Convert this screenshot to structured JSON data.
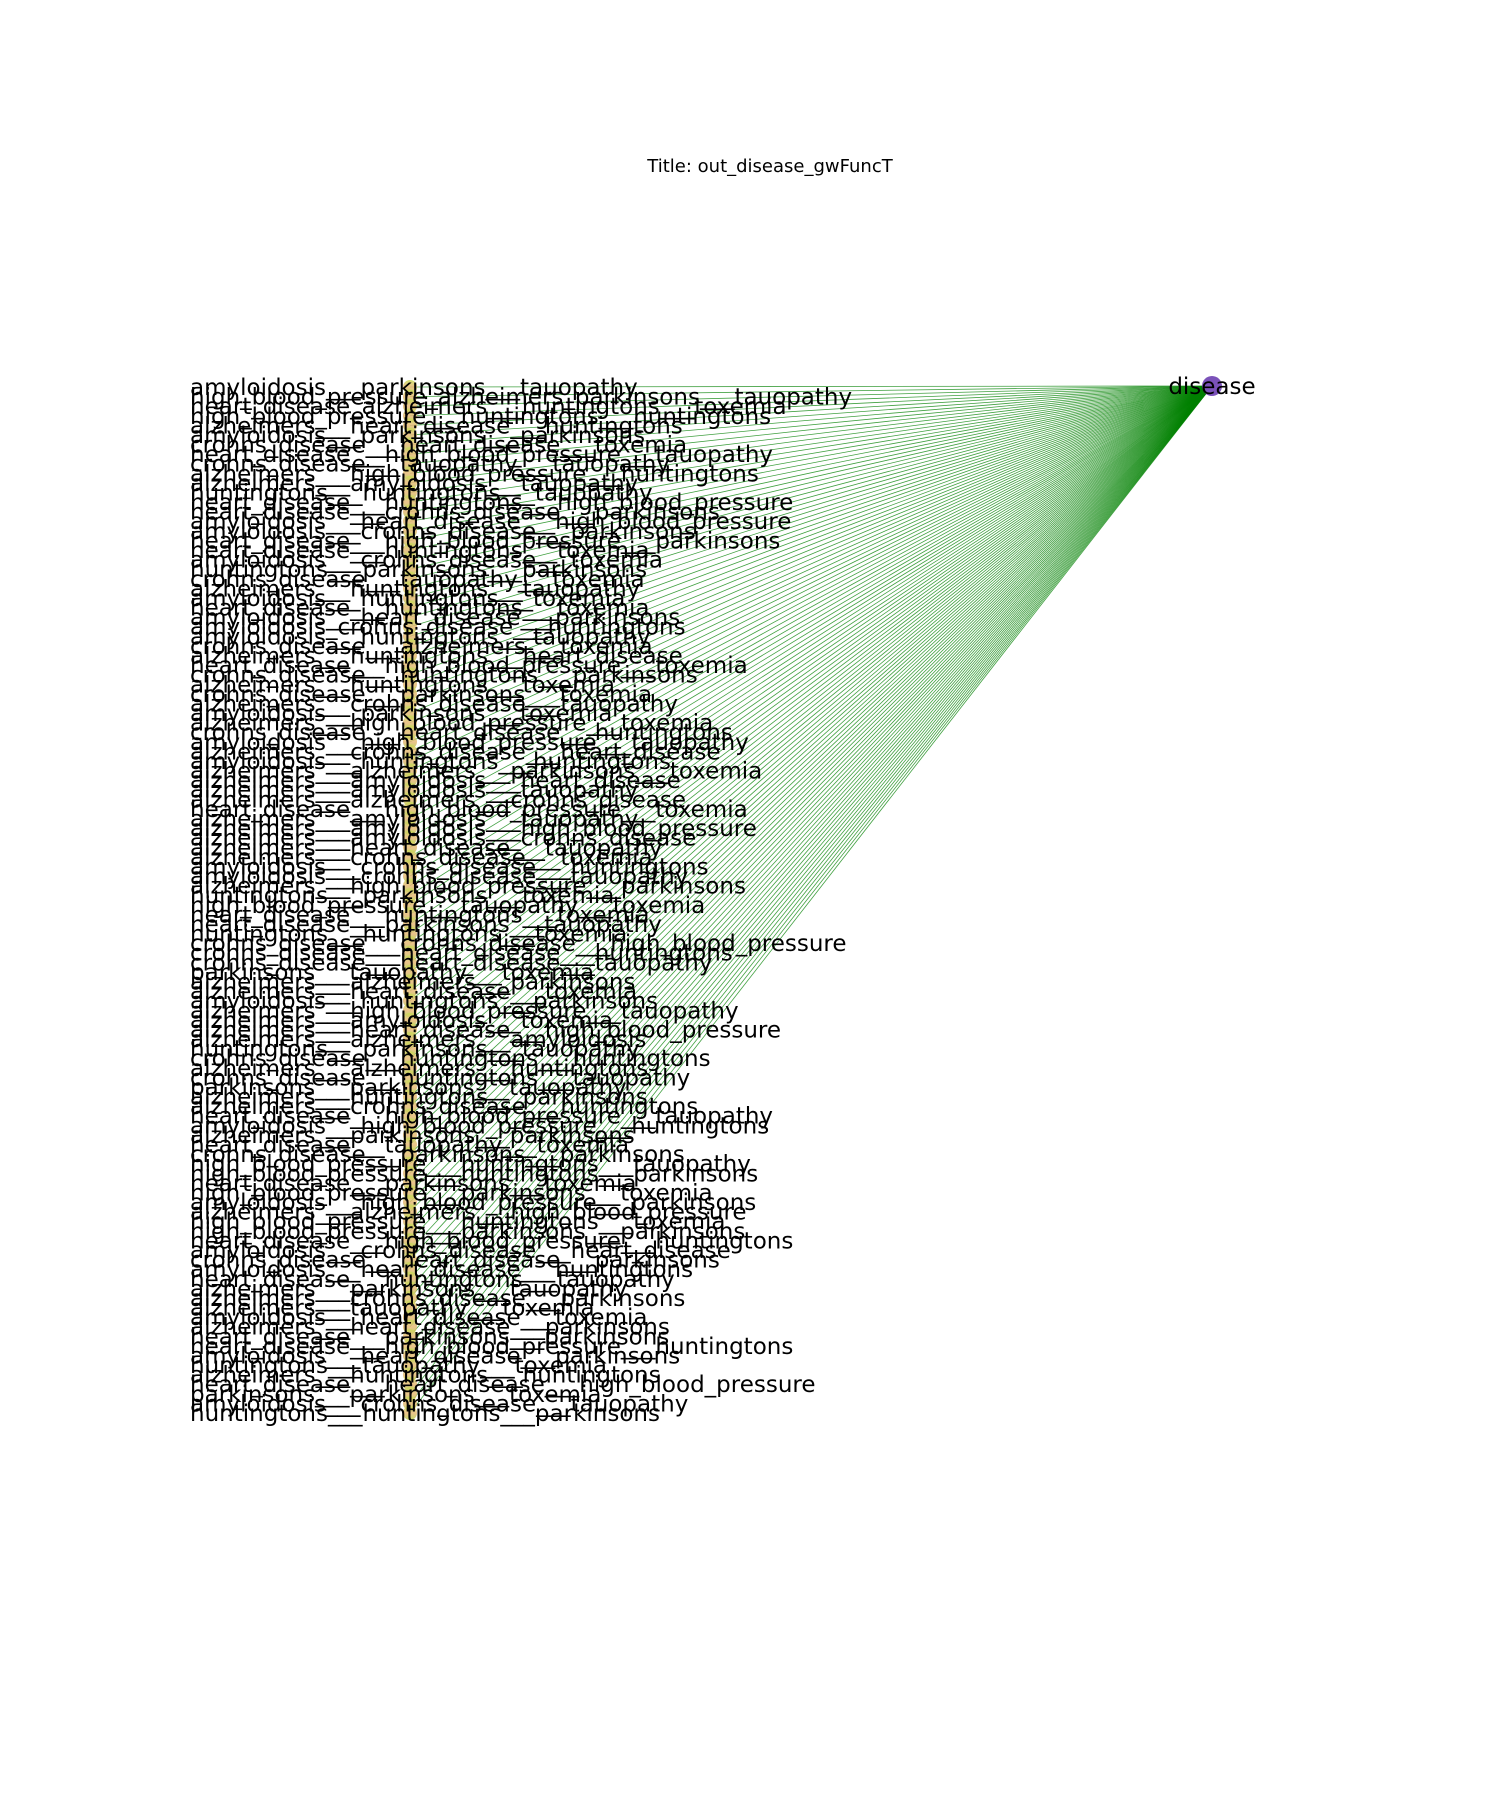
{
  "title": "Title: out_disease_gwFuncT",
  "hub": {
    "label": "disease",
    "color": "#7b52b9"
  },
  "colors": {
    "edge": "#008000",
    "leaf_node_gradient": [
      "#c8dc5a",
      "#e8b878",
      "#b8d050"
    ]
  },
  "leaves": [
    "amyloidosis___parkinsons___tauopathy",
    "high_blood_pressure_alzheimers_parkinsons___tauopathy",
    "heart_disease_alzheimers___huntingtons___toxemia",
    "high_blood_pressure___huntingtons___huntingtons",
    "alzheimers___heart_disease___huntingtons",
    "amyloidosis___parkinsons___parkinsons",
    "crohns_disease___heart_disease___toxemia",
    "heart_disease___high_blood_pressure___tauopathy",
    "crohns_disease___tauopathy___tauopathy",
    "alzheimers___high_blood_pressure___huntingtons",
    "alzheimers___amyloidosis___tauopathy",
    "huntingtons___huntingtons___tauopathy",
    "heart_disease___huntingtons___high_blood_pressure",
    "heart_disease___crohns_disease___parkinsons",
    "amyloidosis___heart_disease___high_blood_pressure",
    "amyloidosis___crohns_disease___parkinsons",
    "heart_disease___high_blood_pressure___parkinsons",
    "heart_disease___huntingtons___toxemia",
    "amyloidosis___crohns_disease___toxemia",
    "huntingtons___parkinsons___parkinsons",
    "crohns_disease___tauopathy___toxemia",
    "alzheimers___huntingtons___tauopathy",
    "amyloidosis___huntingtons___toxemia",
    "heart_disease___huntingtons___toxemia",
    "amyloidosis___heart_disease___parkinsons",
    "amyloidosis_crohns_disease___huntingtons",
    "amyloidosis___huntingtons___tauopathy",
    "crohns_disease___alzheimers___toxemia",
    "alzheimers___huntingtons___heart_disease",
    "heart_disease___high_blood_pressure___toxemia",
    "crohns_disease___huntingtons___parkinsons",
    "alzheimers___huntingtons___toxemia",
    "crohns_disease___parkinsons___toxemia",
    "alzheimers___crohns_disease___tauopathy",
    "amyloidosis___parkinsons___toxemia",
    "alzheimers___high_blood_pressure___toxemia",
    "crohns_disease___heart_disease___huntingtons",
    "amyloidosis___high_blood_pressure___tauopathy",
    "alzheimers___crohns_disease___heart_disease",
    "amyloidosis___huntingtons___huntingtons",
    "alzheimers___alzheimers___parkinsons___toxemia",
    "alzheimers___amyloidosis___heart_disease",
    "alzheimers___amyloidosis___tauopathy",
    "alzheimers___alzheimers___crohns_disease",
    "heart_disease___high_blood_pressure___toxemia",
    "alzheimers___amyloidosis___tauopathy",
    "alzheimers___amyloidosis___high_blood_pressure",
    "alzheimers___amyloidosis___crohns_disease",
    "alzheimers___heart_disease___tauopathy",
    "alzheimers___crohns_disease___toxemia",
    "amyloidosis___crohns_disease___huntingtons",
    "amyloidosis___crohns_disease___tauopathy",
    "alzheimers___high_blood_pressure___parkinsons",
    "huntingtons___parkinsons___toxemia",
    "high_blood_pressure___tauopathy___toxemia",
    "heart_disease___huntingtons___toxemia",
    "heart_disease___parkinsons___tauopathy",
    "huntingtons___huntingtons___toxemia",
    "crohns_disease___crohns_disease___high_blood_pressure",
    "crohns_disease___heart_disease___huntingtons",
    "crohns_disease___heart_disease___tauopathy",
    "parkinsons___tauopathy___toxemia",
    "alzheimers___alzheimers___parkinsons",
    "alzheimers___heart_disease___toxemia",
    "amyloidosis___huntingtons___parkinsons",
    "alzheimers___high_blood_pressure___tauopathy",
    "alzheimers___amyloidosis___toxemia",
    "alzheimers___heart_disease___high_blood_pressure",
    "alzheimers___alzheimers___amyloidosis",
    "huntingtons___parkinsons___tauopathy",
    "crohns_disease___huntingtons___huntingtons",
    "alzheimers___alzheimers___huntingtons",
    "crohns_disease___huntingtons___tauopathy",
    "parkinsons___parkinsons___tauopathy",
    "alzheimers___huntingtons___parkinsons",
    "alzheimers___crohns_disease___huntingtons",
    "heart_disease___high_blood_pressure___tauopathy",
    "amyloidosis___high_blood_pressure___huntingtons",
    "alzheimers___parkinsons___parkinsons",
    "heart_disease___tauopathy___toxemia",
    "crohns_disease___parkinsons___parkinsons",
    "high_blood_pressure___huntingtons___tauopathy",
    "high_blood_pressure___huntingtons___parkinsons",
    "heart_disease___parkinsons___toxemia",
    "high_blood_pressure___parkinsons___toxemia",
    "amyloidosis___high_blood_pressure___parkinsons",
    "alzheimers___alzheimers___high_blood_pressure",
    "high_blood_pressure___huntingtons___toxemia",
    "high_blood_pressure___parkinsons___parkinsons",
    "heart_disease___high_blood_pressure___huntingtons",
    "amyloidosis___crohns_disease___heart_disease",
    "crohns_disease___heart_disease___parkinsons",
    "amyloidosis___heart_disease___huntingtons",
    "heart_disease___huntingtons___tauopathy",
    "alzheimers___parkinsons___tauopathy",
    "alzheimers___crohns_disease___parkinsons",
    "alzheimers___tauopathy___toxemia",
    "amyloidosis___heart_disease___toxemia",
    "alzheimers___heart_disease___parkinsons",
    "heart_disease___parkinsons___parkinsons",
    "heart_disease___high_blood_pressure___huntingtons",
    "amyloidosis___heart_disease___parkinsons",
    "huntingtons___tauopathy___toxemia",
    "alzheimers___huntingtons___huntingtons",
    "heart_disease___heart_disease___high_blood_pressure",
    "parkinsons___parkinsons___toxemia",
    "amyloidosis___crohns_disease___tauopathy",
    "huntingtons___huntingtons___parkinsons"
  ]
}
